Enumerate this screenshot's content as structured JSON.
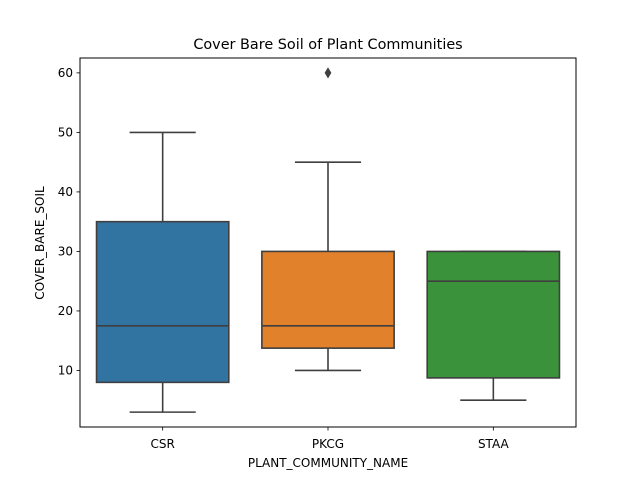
{
  "chart_data": {
    "type": "box",
    "title": "Cover Bare Soil of Plant Communities",
    "xlabel": "PLANT_COMMUNITY_NAME",
    "ylabel": "COVER_BARE_SOIL",
    "ylim": [
      0.5,
      62.5
    ],
    "yticks": [
      10,
      20,
      30,
      40,
      50,
      60
    ],
    "grid": false,
    "categories": [
      "CSR",
      "PKCG",
      "STAA"
    ],
    "boxes": [
      {
        "category": "CSR",
        "whisker_low": 3,
        "q1": 8,
        "median": 17.5,
        "q3": 35,
        "whisker_high": 50,
        "outliers": [],
        "color": "#3274a1"
      },
      {
        "category": "PKCG",
        "whisker_low": 10,
        "q1": 13.75,
        "median": 17.5,
        "q3": 30,
        "whisker_high": 45,
        "outliers": [
          60
        ],
        "color": "#e1812c"
      },
      {
        "category": "STAA",
        "whisker_low": 5,
        "q1": 8.75,
        "median": 25,
        "q3": 30,
        "whisker_high": 30,
        "outliers": [],
        "color": "#3a923a"
      }
    ]
  }
}
